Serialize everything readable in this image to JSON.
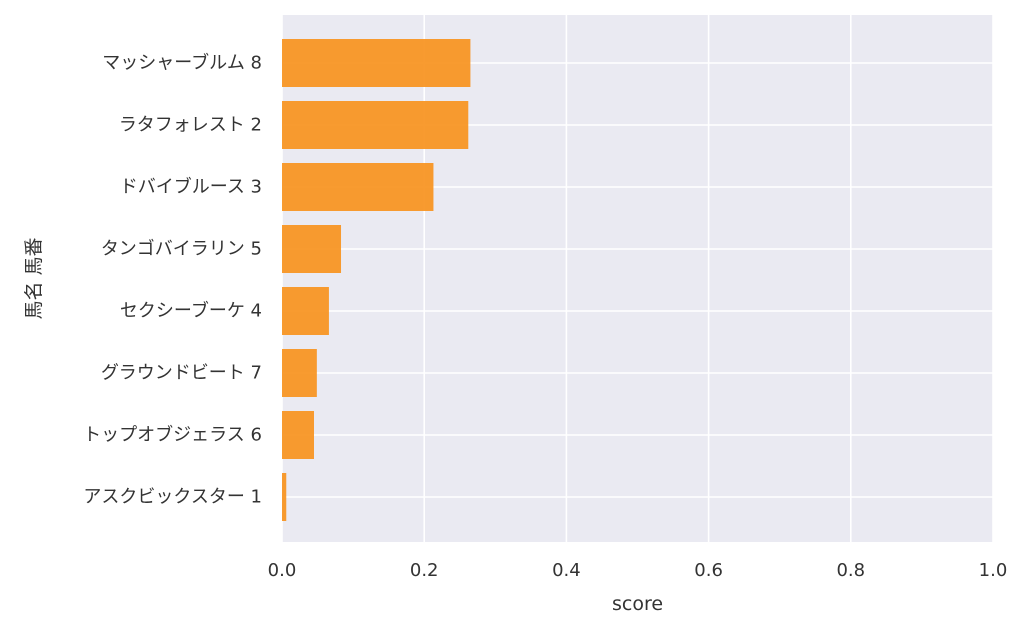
{
  "chart_data": {
    "type": "bar",
    "orientation": "horizontal",
    "title": "",
    "xlabel": "score",
    "ylabel": "馬名 馬番",
    "xlim": [
      0.0,
      1.0
    ],
    "xticks": [
      "0.0",
      "0.2",
      "0.4",
      "0.6",
      "0.8",
      "1.0"
    ],
    "grid": true,
    "bar_color": "#F7931E",
    "background_color": "#EAEAF2",
    "categories": [
      "マッシャーブルム 8",
      "ラタフォレスト 2",
      "ドバイブルース 3",
      "タンゴバイラリン 5",
      "セクシーブーケ 4",
      "グラウンドビート 7",
      "トップオブジェラス 6",
      "アスクビックスター 1"
    ],
    "values": [
      0.265,
      0.262,
      0.213,
      0.083,
      0.066,
      0.049,
      0.045,
      0.006
    ]
  }
}
